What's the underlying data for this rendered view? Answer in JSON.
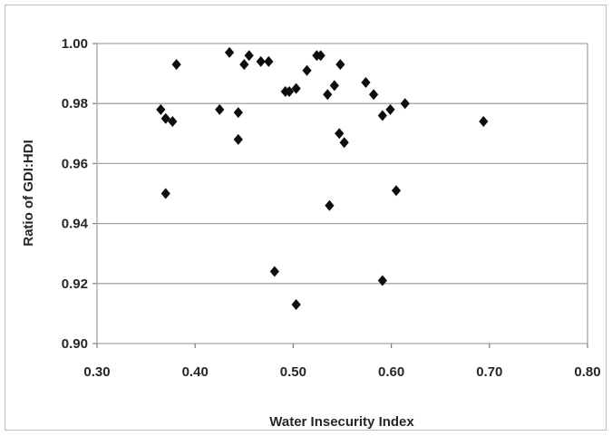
{
  "chart_data": {
    "type": "scatter",
    "title": "",
    "xlabel": "Water Insecurity Index",
    "ylabel": "Ratio of GDI:HDI",
    "xlim": [
      0.3,
      0.8
    ],
    "ylim": [
      0.9,
      1.0
    ],
    "xticks": [
      "0.30",
      "0.40",
      "0.50",
      "0.60",
      "0.70",
      "0.80"
    ],
    "yticks": [
      "0.90",
      "0.92",
      "0.94",
      "0.96",
      "0.98",
      "1.00"
    ],
    "grid": "horizontal",
    "legend": "none",
    "marker": "diamond",
    "marker_color": "#0d0d0d",
    "grid_color": "#a6a6a6",
    "points": [
      {
        "x": 0.365,
        "y": 0.978
      },
      {
        "x": 0.37,
        "y": 0.975
      },
      {
        "x": 0.377,
        "y": 0.974
      },
      {
        "x": 0.381,
        "y": 0.993
      },
      {
        "x": 0.37,
        "y": 0.95
      },
      {
        "x": 0.425,
        "y": 0.978
      },
      {
        "x": 0.435,
        "y": 0.997
      },
      {
        "x": 0.444,
        "y": 0.977
      },
      {
        "x": 0.444,
        "y": 0.968
      },
      {
        "x": 0.45,
        "y": 0.993
      },
      {
        "x": 0.455,
        "y": 0.996
      },
      {
        "x": 0.467,
        "y": 0.994
      },
      {
        "x": 0.475,
        "y": 0.994
      },
      {
        "x": 0.481,
        "y": 0.924
      },
      {
        "x": 0.492,
        "y": 0.984
      },
      {
        "x": 0.496,
        "y": 0.984
      },
      {
        "x": 0.503,
        "y": 0.985
      },
      {
        "x": 0.503,
        "y": 0.913
      },
      {
        "x": 0.514,
        "y": 0.991
      },
      {
        "x": 0.524,
        "y": 0.996
      },
      {
        "x": 0.528,
        "y": 0.996
      },
      {
        "x": 0.535,
        "y": 0.983
      },
      {
        "x": 0.537,
        "y": 0.946
      },
      {
        "x": 0.542,
        "y": 0.986
      },
      {
        "x": 0.547,
        "y": 0.97
      },
      {
        "x": 0.548,
        "y": 0.993
      },
      {
        "x": 0.552,
        "y": 0.967
      },
      {
        "x": 0.574,
        "y": 0.987
      },
      {
        "x": 0.582,
        "y": 0.983
      },
      {
        "x": 0.591,
        "y": 0.976
      },
      {
        "x": 0.591,
        "y": 0.921
      },
      {
        "x": 0.599,
        "y": 0.978
      },
      {
        "x": 0.605,
        "y": 0.951
      },
      {
        "x": 0.614,
        "y": 0.98
      },
      {
        "x": 0.694,
        "y": 0.974
      }
    ]
  }
}
